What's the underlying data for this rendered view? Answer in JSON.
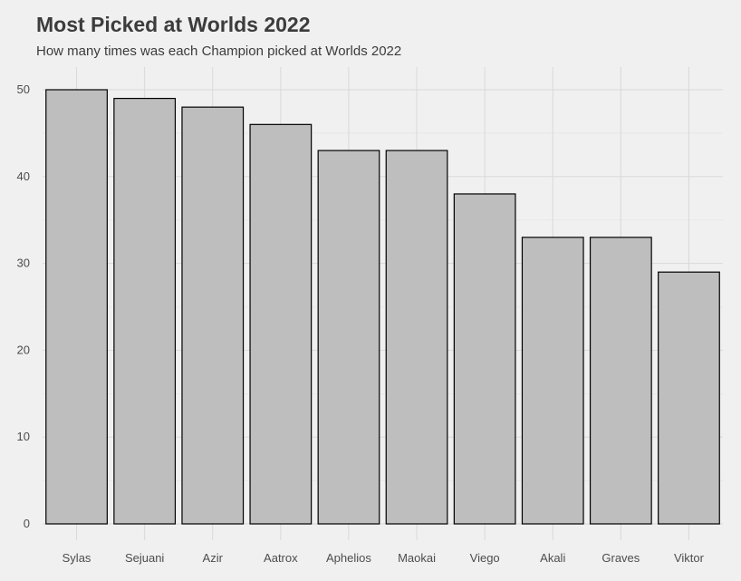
{
  "chart_data": {
    "type": "bar",
    "title": "Most Picked at Worlds 2022",
    "subtitle": "How many times was each Champion picked at Worlds 2022",
    "xlabel": "",
    "ylabel": "",
    "categories": [
      "Sylas",
      "Sejuani",
      "Azir",
      "Aatrox",
      "Aphelios",
      "Maokai",
      "Viego",
      "Akali",
      "Graves",
      "Viktor"
    ],
    "values": [
      50,
      49,
      48,
      46,
      43,
      43,
      38,
      33,
      33,
      29
    ],
    "ylim": [
      0,
      52
    ],
    "yticks": [
      0,
      10,
      20,
      30,
      40,
      50
    ],
    "grid": true,
    "legend": "none",
    "colors": {
      "bar_fill": "#bebebe",
      "bar_stroke": "#000000",
      "grid": "#d9d9d9",
      "background": "#f0f0f0"
    }
  }
}
